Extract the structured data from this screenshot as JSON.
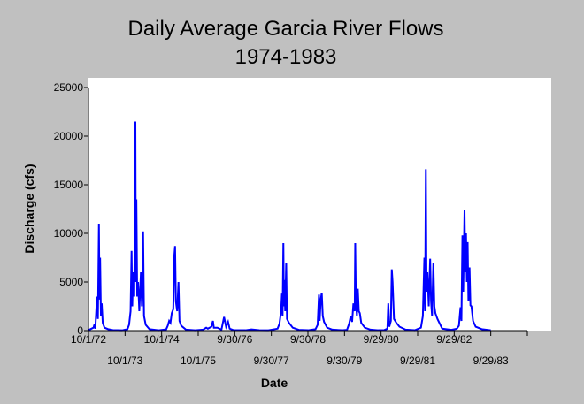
{
  "chart_data": {
    "type": "line",
    "title": [
      "Daily Average Garcia River Flows",
      "1974-1983"
    ],
    "xlabel": "Date",
    "ylabel": "Discharge (cfs)",
    "ylim": [
      0,
      25000
    ],
    "yticks": [
      0,
      5000,
      10000,
      15000,
      20000,
      25000
    ],
    "xlim": [
      "1972-10-01",
      "1984-09-28"
    ],
    "xtick_labels": [
      {
        "date": "1972-10-01",
        "label": "10/1/72",
        "row": 1
      },
      {
        "date": "1973-10-01",
        "label": "10/1/73",
        "row": 2
      },
      {
        "date": "1974-10-01",
        "label": "10/1/74",
        "row": 1
      },
      {
        "date": "1975-10-01",
        "label": "10/1/75",
        "row": 2
      },
      {
        "date": "1976-09-30",
        "label": "9/30/76",
        "row": 1
      },
      {
        "date": "1977-09-30",
        "label": "9/30/77",
        "row": 2
      },
      {
        "date": "1978-09-30",
        "label": "9/30/78",
        "row": 1
      },
      {
        "date": "1979-09-30",
        "label": "9/30/79",
        "row": 2
      },
      {
        "date": "1980-09-29",
        "label": "9/29/80",
        "row": 1
      },
      {
        "date": "1981-09-29",
        "label": "9/29/81",
        "row": 2
      },
      {
        "date": "1982-09-29",
        "label": "9/29/82",
        "row": 1
      },
      {
        "date": "1983-09-29",
        "label": "9/29/83",
        "row": 2
      }
    ],
    "grid": false,
    "legend": "none",
    "series": [
      {
        "color": "#0000ff",
        "points": [
          [
            "1972-10-01",
            50
          ],
          [
            "1972-11-20",
            300
          ],
          [
            "1972-12-01",
            700
          ],
          [
            "1972-12-08",
            200
          ],
          [
            "1972-12-25",
            3500
          ],
          [
            "1973-01-03",
            1200
          ],
          [
            "1973-01-13",
            11000
          ],
          [
            "1973-01-19",
            3200
          ],
          [
            "1973-01-25",
            7500
          ],
          [
            "1973-02-02",
            1500
          ],
          [
            "1973-02-10",
            2800
          ],
          [
            "1973-02-20",
            800
          ],
          [
            "1973-03-10",
            300
          ],
          [
            "1973-04-15",
            150
          ],
          [
            "1973-06-01",
            60
          ],
          [
            "1973-09-01",
            30
          ],
          [
            "1973-10-25",
            150
          ],
          [
            "1973-11-10",
            600
          ],
          [
            "1973-11-25",
            2000
          ],
          [
            "1973-12-05",
            8200
          ],
          [
            "1973-12-12",
            2500
          ],
          [
            "1973-12-20",
            6000
          ],
          [
            "1974-01-01",
            3500
          ],
          [
            "1974-01-12",
            21500
          ],
          [
            "1974-01-17",
            5000
          ],
          [
            "1974-01-22",
            13500
          ],
          [
            "1974-01-30",
            3500
          ],
          [
            "1974-02-08",
            5000
          ],
          [
            "1974-02-20",
            2000
          ],
          [
            "1974-03-08",
            6000
          ],
          [
            "1974-03-18",
            2500
          ],
          [
            "1974-03-30",
            10200
          ],
          [
            "1974-04-08",
            1500
          ],
          [
            "1974-04-25",
            600
          ],
          [
            "1974-06-01",
            150
          ],
          [
            "1974-09-01",
            40
          ],
          [
            "1974-11-15",
            120
          ],
          [
            "1974-12-01",
            500
          ],
          [
            "1974-12-15",
            1000
          ],
          [
            "1974-12-28",
            800
          ],
          [
            "1975-01-10",
            1800
          ],
          [
            "1975-01-25",
            2200
          ],
          [
            "1975-02-05",
            7800
          ],
          [
            "1975-02-12",
            8700
          ],
          [
            "1975-02-20",
            3000
          ],
          [
            "1975-03-05",
            2000
          ],
          [
            "1975-03-18",
            5000
          ],
          [
            "1975-03-28",
            1000
          ],
          [
            "1975-04-15",
            500
          ],
          [
            "1975-06-01",
            100
          ],
          [
            "1975-09-01",
            30
          ],
          [
            "1975-11-20",
            100
          ],
          [
            "1975-12-20",
            300
          ],
          [
            "1976-01-05",
            200
          ],
          [
            "1976-02-10",
            400
          ],
          [
            "1976-02-25",
            1000
          ],
          [
            "1976-03-05",
            300
          ],
          [
            "1976-04-10",
            300
          ],
          [
            "1976-05-20",
            100
          ],
          [
            "1976-06-15",
            1400
          ],
          [
            "1976-07-05",
            400
          ],
          [
            "1976-07-25",
            900
          ],
          [
            "1976-08-10",
            200
          ],
          [
            "1976-09-15",
            60
          ],
          [
            "1977-01-15",
            40
          ],
          [
            "1977-03-15",
            120
          ],
          [
            "1977-06-01",
            50
          ],
          [
            "1977-09-01",
            30
          ],
          [
            "1977-12-01",
            200
          ],
          [
            "1977-12-20",
            700
          ],
          [
            "1978-01-05",
            2000
          ],
          [
            "1978-01-14",
            3800
          ],
          [
            "1978-01-20",
            1500
          ],
          [
            "1978-01-28",
            9000
          ],
          [
            "1978-02-02",
            2500
          ],
          [
            "1978-02-08",
            5200
          ],
          [
            "1978-02-15",
            2000
          ],
          [
            "1978-02-25",
            7000
          ],
          [
            "1978-03-05",
            1200
          ],
          [
            "1978-03-25",
            800
          ],
          [
            "1978-05-01",
            300
          ],
          [
            "1978-07-01",
            80
          ],
          [
            "1978-10-01",
            40
          ],
          [
            "1978-12-15",
            150
          ],
          [
            "1979-01-05",
            600
          ],
          [
            "1979-01-18",
            3700
          ],
          [
            "1979-01-25",
            1000
          ],
          [
            "1979-02-05",
            3200
          ],
          [
            "1979-02-15",
            3900
          ],
          [
            "1979-02-25",
            1500
          ],
          [
            "1979-03-10",
            900
          ],
          [
            "1979-04-10",
            300
          ],
          [
            "1979-06-01",
            100
          ],
          [
            "1979-09-01",
            40
          ],
          [
            "1979-10-25",
            80
          ],
          [
            "1979-11-15",
            700
          ],
          [
            "1979-12-01",
            1500
          ],
          [
            "1979-12-15",
            900
          ],
          [
            "1979-12-28",
            2800
          ],
          [
            "1980-01-10",
            2000
          ],
          [
            "1980-01-15",
            9000
          ],
          [
            "1980-01-22",
            3000
          ],
          [
            "1980-02-01",
            1500
          ],
          [
            "1980-02-10",
            4300
          ],
          [
            "1980-02-20",
            2000
          ],
          [
            "1980-03-01",
            1800
          ],
          [
            "1980-03-15",
            800
          ],
          [
            "1980-04-20",
            300
          ],
          [
            "1980-06-15",
            100
          ],
          [
            "1980-09-01",
            40
          ],
          [
            "1980-11-01",
            60
          ],
          [
            "1980-12-01",
            200
          ],
          [
            "1980-12-10",
            2800
          ],
          [
            "1980-12-20",
            400
          ],
          [
            "1981-01-05",
            1000
          ],
          [
            "1981-01-14",
            6300
          ],
          [
            "1981-01-22",
            5000
          ],
          [
            "1981-02-05",
            1200
          ],
          [
            "1981-03-01",
            800
          ],
          [
            "1981-04-01",
            400
          ],
          [
            "1981-06-01",
            100
          ],
          [
            "1981-09-01",
            40
          ],
          [
            "1981-11-01",
            300
          ],
          [
            "1981-11-20",
            1500
          ],
          [
            "1981-12-05",
            7500
          ],
          [
            "1981-12-12",
            2000
          ],
          [
            "1981-12-20",
            16600
          ],
          [
            "1981-12-27",
            4000
          ],
          [
            "1982-01-05",
            6000
          ],
          [
            "1982-01-18",
            2500
          ],
          [
            "1982-02-01",
            7400
          ],
          [
            "1982-02-10",
            3000
          ],
          [
            "1982-02-20",
            1500
          ],
          [
            "1982-03-05",
            7000
          ],
          [
            "1982-03-15",
            2500
          ],
          [
            "1982-03-25",
            1800
          ],
          [
            "1982-04-15",
            1200
          ],
          [
            "1982-06-01",
            200
          ],
          [
            "1982-09-01",
            80
          ],
          [
            "1982-10-25",
            200
          ],
          [
            "1982-11-15",
            500
          ],
          [
            "1982-12-01",
            2400
          ],
          [
            "1982-12-10",
            1000
          ],
          [
            "1982-12-20",
            9800
          ],
          [
            "1982-12-28",
            4000
          ],
          [
            "1983-01-10",
            12400
          ],
          [
            "1983-01-18",
            6000
          ],
          [
            "1983-01-25",
            10000
          ],
          [
            "1983-02-02",
            5000
          ],
          [
            "1983-02-10",
            9100
          ],
          [
            "1983-02-18",
            3000
          ],
          [
            "1983-03-01",
            6500
          ],
          [
            "1983-03-10",
            2600
          ],
          [
            "1983-03-20",
            2500
          ],
          [
            "1983-04-05",
            1000
          ],
          [
            "1983-05-01",
            400
          ],
          [
            "1983-07-01",
            150
          ],
          [
            "1983-09-29",
            40
          ]
        ]
      }
    ]
  }
}
